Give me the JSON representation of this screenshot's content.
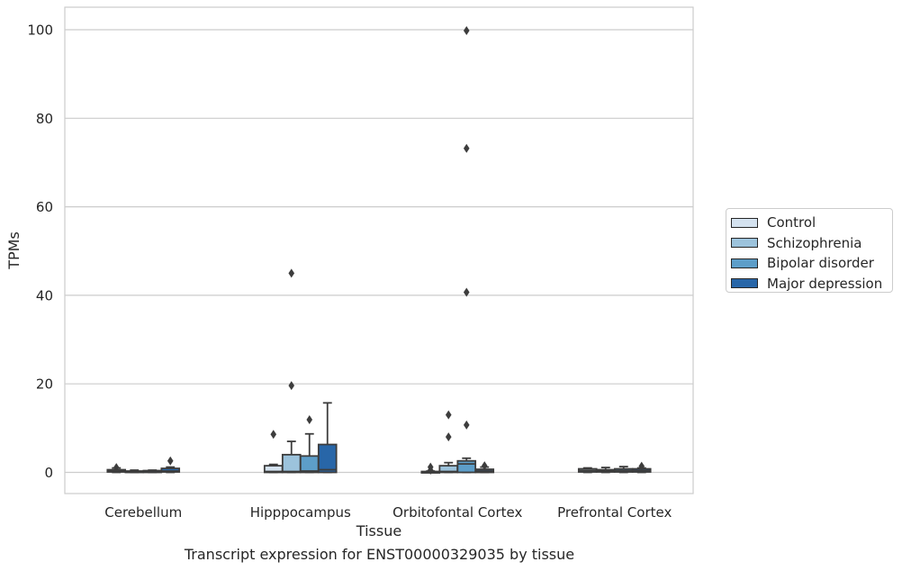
{
  "chart_data": {
    "type": "box",
    "title": "",
    "caption": "Transcript expression for ENST00000329035 by tissue",
    "xlabel": "Tissue",
    "ylabel": "TPMs",
    "ylim": [
      -5,
      105
    ],
    "yticks": [
      0,
      20,
      40,
      60,
      80,
      100
    ],
    "ytick_labels": [
      "0",
      "20",
      "40",
      "60",
      "80",
      "100"
    ],
    "grid": "horizontal",
    "legend_position": "right",
    "categories": [
      "Cerebellum",
      "Hipppocampus",
      "Orbitofontal Cortex",
      "Prefrontal Cortex"
    ],
    "series": [
      {
        "name": "Control",
        "color": "#d4e2ef",
        "boxes": [
          {
            "min": 0.0,
            "q1": 0.1,
            "median": 0.3,
            "q3": 0.6,
            "max": 1.0,
            "outliers": [
              1.1
            ]
          },
          {
            "min": 0.0,
            "q1": 0.0,
            "median": 0.2,
            "q3": 1.5,
            "max": 1.8,
            "outliers": [
              8.6
            ]
          },
          {
            "min": 0.0,
            "q1": 0.0,
            "median": 0.1,
            "q3": 0.2,
            "max": 0.3,
            "outliers": [
              0.5,
              1.2
            ]
          },
          {
            "min": 0.0,
            "q1": 0.1,
            "median": 0.4,
            "q3": 0.8,
            "max": 1.0,
            "outliers": []
          }
        ]
      },
      {
        "name": "Schizophrenia",
        "color": "#9cc3dc",
        "boxes": [
          {
            "min": 0.0,
            "q1": 0.0,
            "median": 0.1,
            "q3": 0.3,
            "max": 0.5,
            "outliers": []
          },
          {
            "min": 0.0,
            "q1": 0.0,
            "median": 0.2,
            "q3": 4.0,
            "max": 7.0,
            "outliers": [
              19.6,
              45.0
            ]
          },
          {
            "min": 0.0,
            "q1": 0.0,
            "median": 0.2,
            "q3": 1.5,
            "max": 2.2,
            "outliers": [
              8.0,
              13.0
            ]
          },
          {
            "min": 0.0,
            "q1": 0.1,
            "median": 0.3,
            "q3": 0.6,
            "max": 1.1,
            "outliers": []
          }
        ]
      },
      {
        "name": "Bipolar disorder",
        "color": "#5d9ec9",
        "boxes": [
          {
            "min": 0.0,
            "q1": 0.0,
            "median": 0.1,
            "q3": 0.4,
            "max": 0.5,
            "outliers": []
          },
          {
            "min": 0.0,
            "q1": 0.0,
            "median": 0.3,
            "q3": 3.7,
            "max": 8.7,
            "outliers": [
              11.9
            ]
          },
          {
            "min": 0.0,
            "q1": 0.0,
            "median": 1.9,
            "q3": 2.6,
            "max": 3.2,
            "outliers": [
              10.7,
              40.7,
              73.2,
              99.8
            ]
          },
          {
            "min": 0.0,
            "q1": 0.1,
            "median": 0.4,
            "q3": 0.8,
            "max": 1.3,
            "outliers": []
          }
        ]
      },
      {
        "name": "Major depression",
        "color": "#2866a8",
        "boxes": [
          {
            "min": 0.0,
            "q1": 0.1,
            "median": 0.3,
            "q3": 0.9,
            "max": 1.2,
            "outliers": [
              2.6
            ]
          },
          {
            "min": 0.0,
            "q1": 0.0,
            "median": 0.6,
            "q3": 6.3,
            "max": 15.7,
            "outliers": []
          },
          {
            "min": 0.0,
            "q1": 0.0,
            "median": 0.3,
            "q3": 0.7,
            "max": 1.2,
            "outliers": [
              1.5
            ]
          },
          {
            "min": 0.0,
            "q1": 0.1,
            "median": 0.4,
            "q3": 0.8,
            "max": 1.0,
            "outliers": [
              1.4
            ]
          }
        ]
      }
    ]
  }
}
